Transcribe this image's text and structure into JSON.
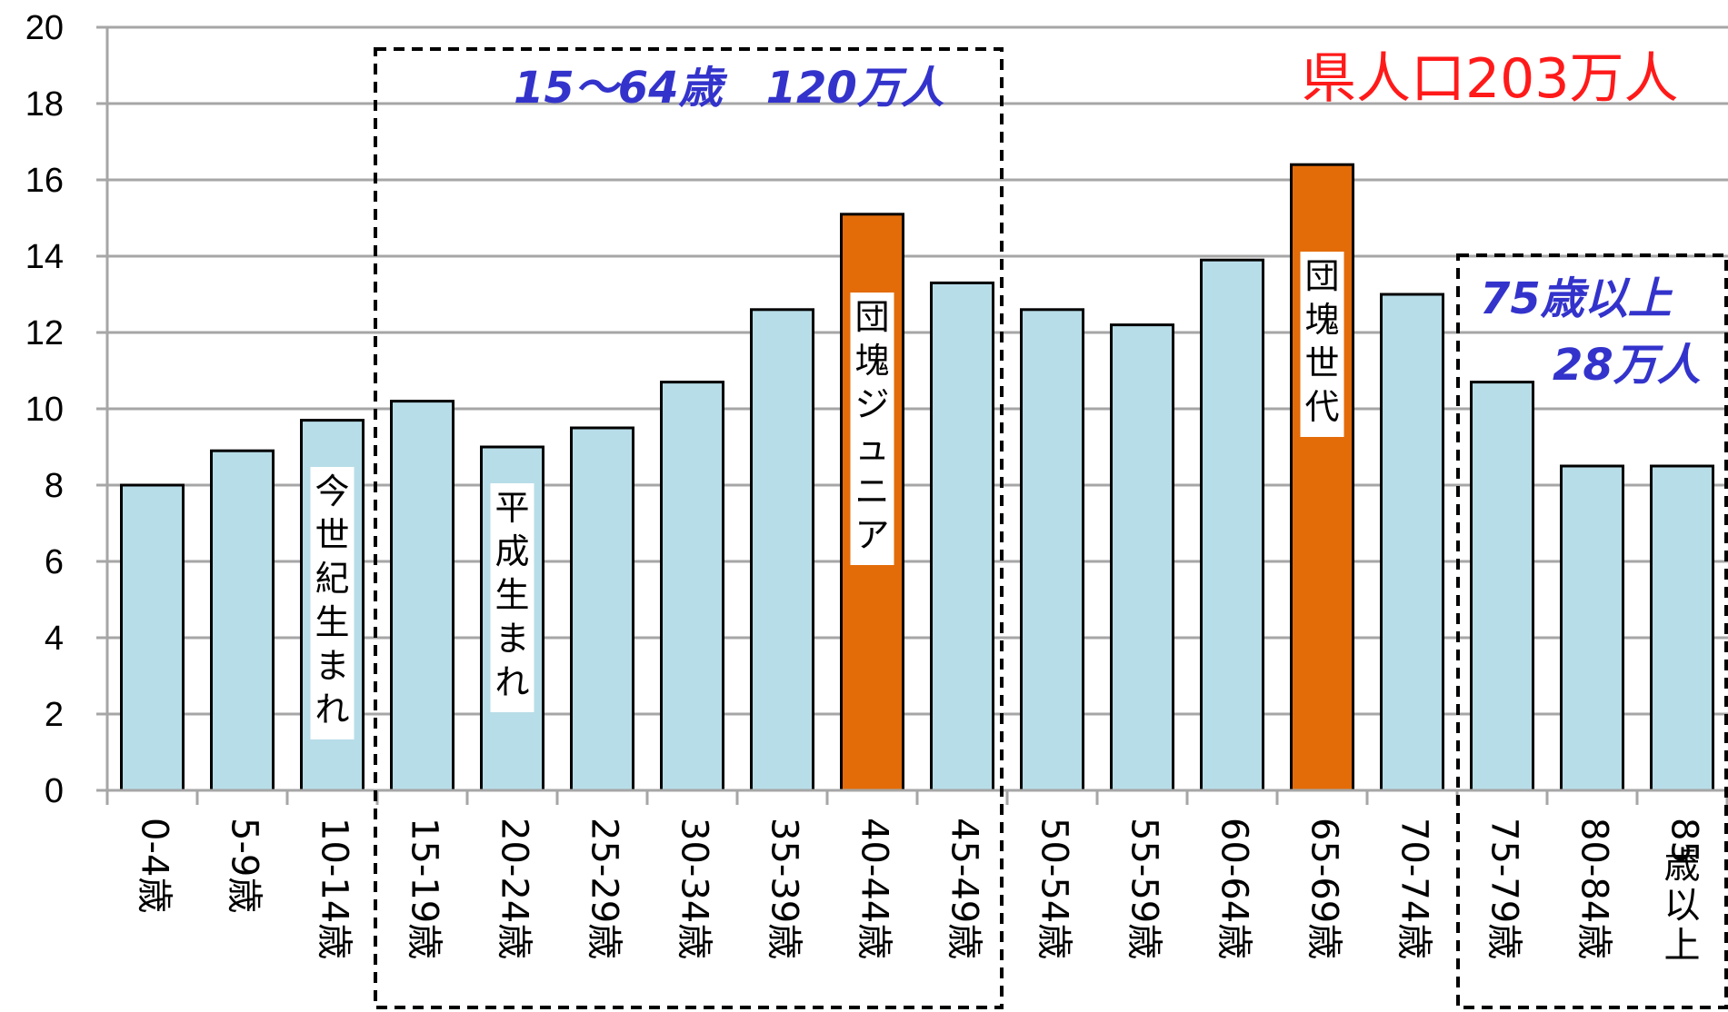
{
  "chart_data": {
    "type": "bar",
    "categories": [
      "0-4歳",
      "5-9歳",
      "10-14歳",
      "15-19歳",
      "20-24歳",
      "25-29歳",
      "30-34歳",
      "35-39歳",
      "40-44歳",
      "45-49歳",
      "50-54歳",
      "55-59歳",
      "60-64歳",
      "65-69歳",
      "70-74歳",
      "75-79歳",
      "80-84歳",
      "85歳以上"
    ],
    "values": [
      8.0,
      8.9,
      9.7,
      10.2,
      9.0,
      9.5,
      10.7,
      12.6,
      15.1,
      13.3,
      12.6,
      12.2,
      13.9,
      16.4,
      13.0,
      10.7,
      8.5,
      8.5
    ],
    "highlight": [
      false,
      false,
      false,
      false,
      false,
      false,
      false,
      false,
      true,
      false,
      false,
      false,
      false,
      true,
      false,
      false,
      false,
      false
    ],
    "ylim": [
      0,
      20
    ],
    "yticks": [
      0,
      2,
      4,
      6,
      8,
      10,
      12,
      14,
      16,
      18,
      20
    ],
    "grid": true,
    "colors": {
      "bar": "#b7dde8",
      "highlight": "#e36c09",
      "grid": "#a6a6a6",
      "blue_text": "#3333cc",
      "red_text": "#ff1a1a"
    },
    "bar_labels": [
      {
        "index": 2,
        "text": "今世紀生まれ"
      },
      {
        "index": 4,
        "text": "平成生まれ"
      },
      {
        "index": 8,
        "text": "団塊ジュニア"
      },
      {
        "index": 13,
        "text": "団塊世代"
      }
    ],
    "annotations": {
      "working_age": "15～64歳　120万人",
      "total": "県人口203万人",
      "elderly_line1": "75歳以上",
      "elderly_line2": "28万人"
    }
  }
}
